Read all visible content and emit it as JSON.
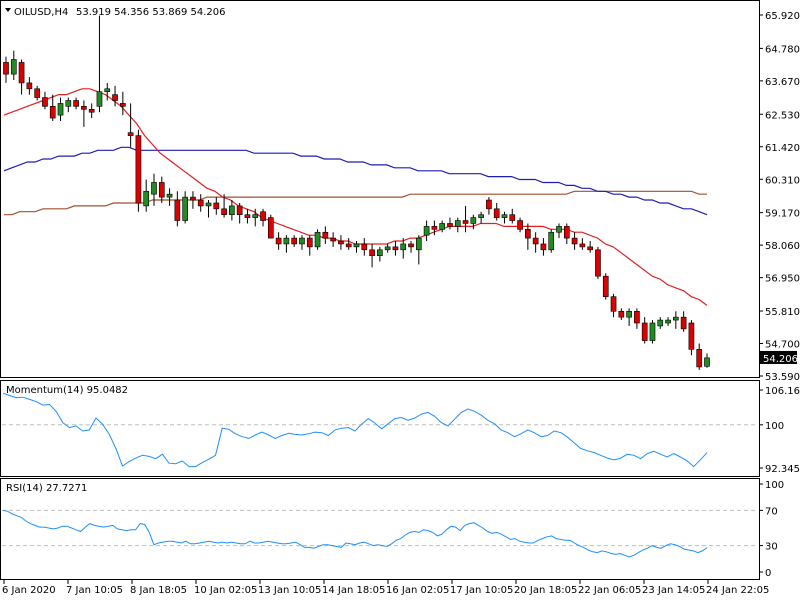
{
  "header": {
    "symbol": "OILUSD,H4",
    "ohlc": "53.919 54.356 53.869 54.206",
    "last_price": "54.206"
  },
  "colors": {
    "bull": "#228b22",
    "bear": "#dd0000",
    "ma_fast": "#e02020",
    "ma_mid": "#1e1eb4",
    "ma_slow": "#a0522d",
    "oscillator": "#1e90ff",
    "grid_dash": "#bfbfbf",
    "price_box": "#000000"
  },
  "chart_data": [
    {
      "type": "candlestick",
      "ylim": [
        53.59,
        65.92
      ],
      "yticks": [
        "65.920",
        "64.780",
        "63.670",
        "62.530",
        "61.420",
        "60.310",
        "59.170",
        "58.060",
        "56.950",
        "55.810",
        "54.700",
        "53.590"
      ],
      "candles": [
        [
          64.3,
          64.5,
          63.6,
          63.9
        ],
        [
          63.9,
          64.7,
          63.7,
          64.4
        ],
        [
          64.3,
          64.4,
          63.2,
          63.6
        ],
        [
          63.6,
          63.8,
          63.2,
          63.4
        ],
        [
          63.4,
          63.5,
          63.0,
          63.1
        ],
        [
          63.1,
          63.3,
          62.7,
          62.8
        ],
        [
          62.8,
          63.2,
          62.3,
          62.4
        ],
        [
          62.5,
          63.1,
          62.3,
          62.9
        ],
        [
          62.8,
          63.1,
          62.6,
          63.0
        ],
        [
          63.0,
          63.1,
          62.7,
          62.8
        ],
        [
          62.8,
          63.0,
          62.1,
          62.7
        ],
        [
          62.7,
          62.9,
          62.4,
          62.6
        ],
        [
          62.8,
          65.9,
          62.6,
          63.3
        ],
        [
          63.3,
          63.6,
          63.0,
          63.4
        ],
        [
          63.2,
          63.5,
          62.8,
          63.0
        ],
        [
          62.9,
          63.3,
          62.5,
          62.8
        ],
        [
          61.9,
          62.9,
          61.4,
          61.8
        ],
        [
          61.8,
          62.0,
          59.2,
          59.5
        ],
        [
          59.4,
          60.3,
          59.2,
          59.9
        ],
        [
          59.8,
          60.5,
          59.4,
          60.2
        ],
        [
          60.2,
          60.4,
          59.5,
          59.7
        ],
        [
          59.7,
          60.0,
          59.4,
          59.8
        ],
        [
          59.6,
          59.9,
          58.7,
          58.9
        ],
        [
          58.9,
          59.9,
          58.8,
          59.7
        ],
        [
          59.7,
          59.9,
          59.3,
          59.6
        ],
        [
          59.6,
          59.8,
          59.2,
          59.4
        ],
        [
          59.4,
          59.6,
          59.0,
          59.5
        ],
        [
          59.5,
          59.7,
          59.1,
          59.3
        ],
        [
          59.3,
          59.8,
          59.0,
          59.1
        ],
        [
          59.1,
          59.6,
          58.9,
          59.4
        ],
        [
          59.4,
          59.5,
          58.8,
          59.1
        ],
        [
          59.1,
          59.3,
          58.8,
          59.0
        ],
        [
          59.0,
          59.3,
          58.7,
          59.1
        ],
        [
          59.2,
          59.3,
          58.7,
          58.9
        ],
        [
          59.0,
          59.1,
          58.3,
          58.3
        ],
        [
          58.3,
          58.5,
          57.9,
          58.1
        ],
        [
          58.1,
          58.4,
          57.8,
          58.3
        ],
        [
          58.3,
          58.4,
          58.0,
          58.1
        ],
        [
          58.1,
          58.4,
          57.9,
          58.3
        ],
        [
          58.3,
          58.4,
          57.7,
          58.0
        ],
        [
          58.0,
          58.6,
          57.9,
          58.5
        ],
        [
          58.5,
          58.7,
          58.1,
          58.3
        ],
        [
          58.3,
          58.5,
          58.0,
          58.2
        ],
        [
          58.2,
          58.4,
          57.9,
          58.1
        ],
        [
          58.1,
          58.3,
          57.9,
          58.0
        ],
        [
          58.0,
          58.2,
          57.8,
          58.1
        ],
        [
          58.1,
          58.3,
          57.7,
          57.9
        ],
        [
          57.9,
          58.1,
          57.3,
          57.7
        ],
        [
          57.7,
          58.0,
          57.5,
          57.9
        ],
        [
          57.9,
          58.1,
          57.8,
          58.0
        ],
        [
          58.0,
          58.2,
          57.7,
          57.9
        ],
        [
          57.9,
          58.3,
          57.6,
          58.1
        ],
        [
          58.1,
          58.2,
          57.8,
          58.0
        ],
        [
          57.9,
          58.4,
          57.4,
          58.3
        ],
        [
          58.4,
          58.9,
          58.2,
          58.7
        ],
        [
          58.7,
          58.9,
          58.4,
          58.6
        ],
        [
          58.6,
          58.9,
          58.5,
          58.8
        ],
        [
          58.8,
          59.0,
          58.6,
          58.7
        ],
        [
          58.7,
          59.0,
          58.5,
          58.9
        ],
        [
          58.9,
          59.4,
          58.5,
          58.8
        ],
        [
          58.8,
          59.1,
          58.6,
          59.0
        ],
        [
          59.0,
          59.2,
          58.8,
          59.1
        ],
        [
          59.6,
          59.7,
          59.1,
          59.3
        ],
        [
          59.3,
          59.5,
          58.9,
          59.0
        ],
        [
          59.0,
          59.2,
          58.8,
          59.1
        ],
        [
          59.1,
          59.3,
          58.8,
          58.9
        ],
        [
          58.9,
          59.0,
          58.5,
          58.6
        ],
        [
          58.6,
          58.8,
          57.9,
          58.3
        ],
        [
          58.3,
          58.5,
          57.8,
          58.1
        ],
        [
          58.1,
          58.3,
          57.7,
          57.9
        ],
        [
          57.9,
          58.6,
          57.8,
          58.5
        ],
        [
          58.5,
          58.8,
          58.3,
          58.7
        ],
        [
          58.7,
          58.8,
          58.1,
          58.3
        ],
        [
          58.3,
          58.5,
          57.9,
          58.1
        ],
        [
          58.1,
          58.3,
          57.9,
          58.0
        ],
        [
          58.0,
          58.2,
          57.8,
          57.9
        ],
        [
          57.9,
          58.0,
          56.9,
          57.0
        ],
        [
          57.0,
          57.1,
          56.2,
          56.3
        ],
        [
          56.3,
          56.4,
          55.6,
          55.8
        ],
        [
          55.8,
          55.9,
          55.5,
          55.6
        ],
        [
          55.6,
          55.9,
          55.3,
          55.8
        ],
        [
          55.8,
          55.9,
          55.2,
          55.4
        ],
        [
          55.4,
          55.6,
          54.7,
          54.8
        ],
        [
          54.8,
          55.5,
          54.7,
          55.4
        ],
        [
          55.3,
          55.6,
          55.2,
          55.5
        ],
        [
          55.4,
          55.6,
          55.3,
          55.5
        ],
        [
          55.5,
          55.8,
          55.2,
          55.6
        ],
        [
          55.6,
          55.8,
          55.1,
          55.2
        ],
        [
          55.4,
          55.5,
          54.3,
          54.5
        ],
        [
          54.5,
          54.7,
          53.8,
          53.9
        ],
        [
          53.92,
          54.36,
          53.87,
          54.21
        ]
      ],
      "ma_fast": [
        62.5,
        62.6,
        62.7,
        62.8,
        62.9,
        63.0,
        63.1,
        63.2,
        63.2,
        63.3,
        63.4,
        63.4,
        63.3,
        63.2,
        63.0,
        62.8,
        62.5,
        62.2,
        61.8,
        61.5,
        61.2,
        61.0,
        60.8,
        60.6,
        60.4,
        60.2,
        60.0,
        59.9,
        59.7,
        59.6,
        59.4,
        59.3,
        59.2,
        59.0,
        58.9,
        58.8,
        58.7,
        58.6,
        58.5,
        58.4,
        58.4,
        58.3,
        58.3,
        58.2,
        58.2,
        58.1,
        58.1,
        58.1,
        58.1,
        58.1,
        58.2,
        58.2,
        58.3,
        58.3,
        58.4,
        58.5,
        58.6,
        58.7,
        58.7,
        58.7,
        58.7,
        58.8,
        58.8,
        58.8,
        58.7,
        58.7,
        58.7,
        58.7,
        58.7,
        58.7,
        58.6,
        58.6,
        58.6,
        58.5,
        58.5,
        58.4,
        58.3,
        58.1,
        58.0,
        57.8,
        57.6,
        57.4,
        57.2,
        57.0,
        56.9,
        56.7,
        56.6,
        56.5,
        56.3,
        56.2,
        56.0
      ],
      "ma_mid": [
        60.6,
        60.7,
        60.8,
        60.9,
        60.9,
        61.0,
        61.0,
        61.1,
        61.1,
        61.1,
        61.2,
        61.2,
        61.3,
        61.3,
        61.3,
        61.4,
        61.4,
        61.3,
        61.3,
        61.3,
        61.3,
        61.3,
        61.3,
        61.3,
        61.3,
        61.3,
        61.3,
        61.3,
        61.3,
        61.3,
        61.3,
        61.3,
        61.2,
        61.2,
        61.2,
        61.2,
        61.2,
        61.2,
        61.1,
        61.1,
        61.1,
        61.0,
        61.0,
        61.0,
        60.9,
        60.9,
        60.9,
        60.8,
        60.8,
        60.8,
        60.7,
        60.7,
        60.7,
        60.6,
        60.6,
        60.6,
        60.6,
        60.5,
        60.5,
        60.5,
        60.5,
        60.5,
        60.4,
        60.4,
        60.4,
        60.4,
        60.3,
        60.3,
        60.3,
        60.2,
        60.2,
        60.2,
        60.1,
        60.1,
        60.0,
        60.0,
        59.9,
        59.9,
        59.8,
        59.8,
        59.7,
        59.7,
        59.6,
        59.6,
        59.5,
        59.5,
        59.4,
        59.3,
        59.3,
        59.2,
        59.1
      ],
      "ma_slow": [
        59.1,
        59.1,
        59.2,
        59.2,
        59.2,
        59.3,
        59.3,
        59.3,
        59.3,
        59.4,
        59.4,
        59.4,
        59.4,
        59.4,
        59.5,
        59.5,
        59.5,
        59.5,
        59.5,
        59.6,
        59.6,
        59.6,
        59.6,
        59.6,
        59.6,
        59.6,
        59.7,
        59.7,
        59.7,
        59.7,
        59.7,
        59.7,
        59.7,
        59.7,
        59.7,
        59.7,
        59.7,
        59.7,
        59.7,
        59.7,
        59.7,
        59.7,
        59.7,
        59.7,
        59.7,
        59.7,
        59.7,
        59.7,
        59.7,
        59.7,
        59.7,
        59.7,
        59.8,
        59.8,
        59.8,
        59.8,
        59.8,
        59.8,
        59.8,
        59.8,
        59.8,
        59.8,
        59.8,
        59.8,
        59.8,
        59.8,
        59.8,
        59.8,
        59.8,
        59.8,
        59.8,
        59.8,
        59.8,
        59.9,
        59.9,
        59.9,
        59.9,
        59.9,
        59.9,
        59.9,
        59.9,
        59.9,
        59.9,
        59.9,
        59.9,
        59.9,
        59.9,
        59.9,
        59.9,
        59.8,
        59.8
      ]
    },
    {
      "type": "line",
      "label": "Momentum(14) 95.0482",
      "ylim": [
        92.3454,
        106.1695
      ],
      "yticks": [
        "106.1695",
        "100",
        "92.3454"
      ],
      "reference_level": 100,
      "values": [
        105.6,
        105.2,
        104.8,
        104.9,
        104.5,
        104.1,
        103.5,
        103.6,
        102.4,
        100.4,
        99.5,
        99.8,
        98.9,
        99.1,
        101.2,
        100.1,
        98.3,
        95.8,
        92.7,
        93.5,
        94.1,
        94.6,
        94.4,
        94.0,
        94.8,
        93.2,
        93.1,
        93.6,
        92.6,
        92.6,
        93.3,
        93.9,
        94.6,
        99.4,
        99.2,
        98.4,
        97.9,
        97.6,
        98.2,
        98.7,
        98.2,
        97.6,
        98.1,
        98.5,
        98.3,
        98.2,
        98.4,
        98.7,
        98.6,
        98.1,
        99.1,
        99.4,
        99.5,
        98.9,
        100.1,
        101.1,
        100.3,
        99.3,
        100.2,
        101.1,
        101.3,
        100.8,
        101.2,
        101.9,
        102.2,
        101.5,
        100.4,
        99.8,
        101.0,
        102.2,
        102.8,
        102.4,
        101.7,
        100.8,
        100.2,
        99.1,
        98.6,
        97.9,
        98.4,
        99.1,
        98.6,
        97.9,
        98.1,
        98.9,
        98.6,
        97.8,
        96.8,
        95.8,
        95.4,
        95.1,
        94.6,
        94.1,
        93.8,
        94.1,
        94.8,
        94.6,
        94.0,
        94.9,
        95.3,
        94.8,
        94.3,
        94.9,
        94.3,
        93.6,
        92.6,
        93.8,
        95.05
      ]
    },
    {
      "type": "line",
      "label": "RSI(14) 27.7271",
      "ylim": [
        0,
        100
      ],
      "yticks": [
        "100",
        "70",
        "30",
        "0"
      ],
      "reference_levels": [
        70,
        30
      ],
      "values": [
        70,
        69,
        66,
        64,
        62,
        58,
        55,
        53,
        51,
        51,
        50,
        49,
        50,
        52,
        52,
        50,
        48,
        46,
        51,
        55,
        53,
        52,
        51,
        52,
        53,
        49,
        48,
        47,
        48,
        48,
        55,
        54,
        45,
        31,
        33,
        34,
        35,
        35,
        34,
        33,
        35,
        32,
        32,
        33,
        34,
        35,
        34,
        33,
        34,
        33,
        34,
        33,
        32,
        32,
        35,
        33,
        33,
        34,
        35,
        34,
        33,
        32,
        32,
        33,
        34,
        31,
        28,
        28,
        27,
        29,
        31,
        31,
        30,
        29,
        28,
        33,
        32,
        31,
        33,
        34,
        32,
        30,
        31,
        30,
        29,
        32,
        36,
        38,
        42,
        45,
        46,
        45,
        48,
        47,
        45,
        41,
        43,
        48,
        52,
        51,
        47,
        53,
        55,
        56,
        53,
        50,
        46,
        44,
        45,
        43,
        40,
        37,
        38,
        35,
        34,
        33,
        33,
        36,
        38,
        40,
        41,
        38,
        37,
        36,
        36,
        33,
        30,
        28,
        25,
        23,
        22,
        24,
        23,
        21,
        20,
        21,
        19,
        17,
        19,
        22,
        25,
        27,
        30,
        28,
        27,
        30,
        32,
        31,
        29,
        26,
        25,
        24,
        22,
        24,
        27.7
      ]
    }
  ],
  "time_axis": {
    "labels": [
      "6 Jan 2020",
      "7 Jan 10:05",
      "8 Jan 18:05",
      "10 Jan 02:05",
      "13 Jan 10:05",
      "14 Jan 18:05",
      "16 Jan 02:05",
      "17 Jan 10:05",
      "20 Jan 18:05",
      "22 Jan 06:05",
      "23 Jan 14:05",
      "24 Jan 22:05"
    ]
  }
}
